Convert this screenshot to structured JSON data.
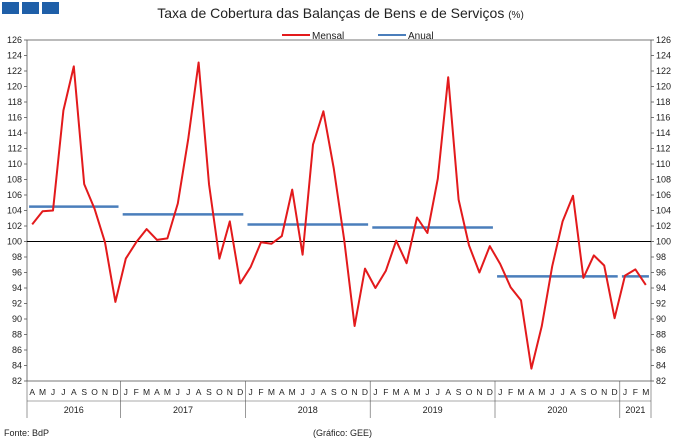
{
  "header": {
    "title": "Taxa de Cobertura das Balanças de Bens e de Serviços",
    "unit": "(%)"
  },
  "footer": {
    "source": "Fonte: BdP",
    "credit": "(Gráfico: GEE)"
  },
  "colors": {
    "mensal": "#e31a1c",
    "anual": "#4a7ebb",
    "logo": "#1f5fa8"
  },
  "chart_data": {
    "type": "line",
    "title": "Taxa de Cobertura das Balanças de Bens e de Serviços (%)",
    "ylim": [
      82,
      126
    ],
    "ytick_step": 2,
    "reference_line": 100,
    "legend_position": "top-center",
    "grid": false,
    "x": [
      "2016-04",
      "2016-05",
      "2016-06",
      "2016-07",
      "2016-08",
      "2016-09",
      "2016-10",
      "2016-11",
      "2016-12",
      "2017-01",
      "2017-02",
      "2017-03",
      "2017-04",
      "2017-05",
      "2017-06",
      "2017-07",
      "2017-08",
      "2017-09",
      "2017-10",
      "2017-11",
      "2017-12",
      "2018-01",
      "2018-02",
      "2018-03",
      "2018-04",
      "2018-05",
      "2018-06",
      "2018-07",
      "2018-08",
      "2018-09",
      "2018-10",
      "2018-11",
      "2018-12",
      "2019-01",
      "2019-02",
      "2019-03",
      "2019-04",
      "2019-05",
      "2019-06",
      "2019-07",
      "2019-08",
      "2019-09",
      "2019-10",
      "2019-11",
      "2019-12",
      "2020-01",
      "2020-02",
      "2020-03",
      "2020-04",
      "2020-05",
      "2020-06",
      "2020-07",
      "2020-08",
      "2020-09",
      "2020-10",
      "2020-11",
      "2020-12",
      "2021-01",
      "2021-02",
      "2021-03"
    ],
    "month_labels": [
      "A",
      "M",
      "J",
      "J",
      "A",
      "S",
      "O",
      "N",
      "D",
      "J",
      "F",
      "M",
      "A",
      "M",
      "J",
      "J",
      "A",
      "S",
      "O",
      "N",
      "D",
      "J",
      "F",
      "M",
      "A",
      "M",
      "J",
      "J",
      "A",
      "S",
      "O",
      "N",
      "D",
      "J",
      "F",
      "M",
      "A",
      "M",
      "J",
      "J",
      "A",
      "S",
      "O",
      "N",
      "D",
      "J",
      "F",
      "M",
      "A",
      "M",
      "J",
      "J",
      "A",
      "S",
      "O",
      "N",
      "D",
      "J",
      "F",
      "M"
    ],
    "years": [
      {
        "label": "2016",
        "months": 9
      },
      {
        "label": "2017",
        "months": 12
      },
      {
        "label": "2018",
        "months": 12
      },
      {
        "label": "2019",
        "months": 12
      },
      {
        "label": "2020",
        "months": 12
      },
      {
        "label": "2021",
        "months": 3
      }
    ],
    "series": [
      {
        "name": "Mensal",
        "kind": "line",
        "values": [
          102.2,
          103.9,
          104.0,
          116.9,
          122.6,
          107.4,
          104.2,
          99.9,
          92.2,
          97.8,
          99.9,
          101.6,
          100.2,
          100.4,
          104.9,
          113.2,
          123.1,
          107.4,
          97.8,
          102.6,
          94.6,
          96.7,
          99.9,
          99.7,
          100.7,
          106.7,
          98.3,
          112.5,
          116.8,
          109.4,
          100.2,
          89.1,
          96.5,
          94.0,
          96.2,
          100.1,
          97.2,
          103.1,
          101.1,
          108.1,
          121.2,
          105.4,
          99.5,
          96.0,
          99.4,
          97.1,
          94.1,
          92.4,
          83.6,
          89.1,
          96.8,
          102.6,
          105.9,
          95.3,
          98.2,
          96.9,
          90.1,
          95.6,
          96.4,
          94.4
        ]
      },
      {
        "name": "Anual",
        "kind": "step",
        "segments": [
          {
            "start": "2016-04",
            "end": "2016-12",
            "value": 104.5
          },
          {
            "start": "2017-01",
            "end": "2017-12",
            "value": 103.5
          },
          {
            "start": "2018-01",
            "end": "2018-12",
            "value": 102.2
          },
          {
            "start": "2019-01",
            "end": "2019-12",
            "value": 101.8
          },
          {
            "start": "2020-01",
            "end": "2020-12",
            "value": 95.5
          },
          {
            "start": "2021-01",
            "end": "2021-03",
            "value": 95.5
          }
        ]
      }
    ]
  }
}
